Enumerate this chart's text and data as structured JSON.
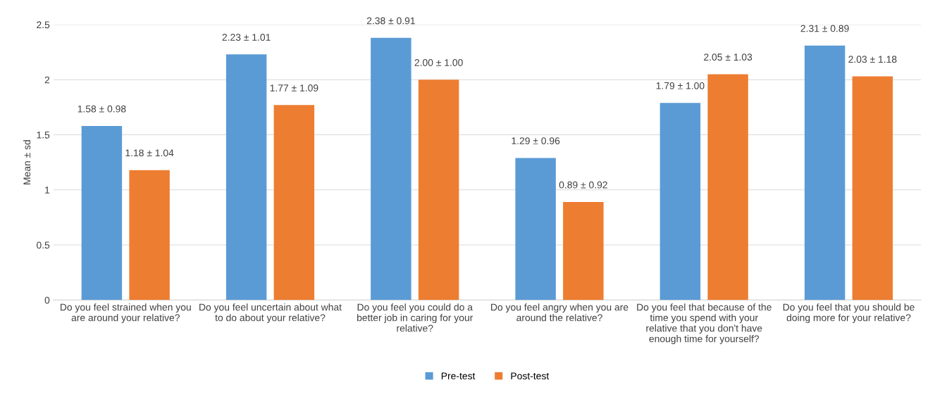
{
  "chart_data": {
    "type": "bar",
    "ylabel": "Mean ± sd",
    "categories": [
      "Do you feel strained when you are around your relative?",
      "Do you feel uncertain about what to do about your relative?",
      "Do you feel you could do a better job in caring for your relative?",
      "Do you feel angry when you are around the relative?",
      "Do you feel that because of the time you spend with your relative that you don't have enough time for yourself?",
      "Do you feel that you should be doing more for your relative?"
    ],
    "series": [
      {
        "name": "Pre-test",
        "color": "#5b9bd5",
        "values": [
          1.58,
          2.23,
          2.38,
          1.29,
          1.79,
          2.31
        ],
        "value_labels": [
          "1.58 ± 0.98",
          "2.23 ± 1.01",
          "2.38 ± 0.91",
          "1.29 ± 0.96",
          "1.79 ± 1.00",
          "2.31 ± 0.89"
        ]
      },
      {
        "name": "Post-test",
        "color": "#ed7d31",
        "values": [
          1.18,
          1.77,
          2.0,
          0.89,
          2.05,
          2.03
        ],
        "value_labels": [
          "1.18 ± 1.04",
          "1.77 ± 1.09",
          "2.00 ± 1.00",
          "0.89 ± 0.92",
          "2.05 ± 1.03",
          "2.03 ± 1.18"
        ]
      }
    ],
    "ylim": [
      0,
      2.5
    ],
    "yticks": [
      0,
      0.5,
      1,
      1.5,
      2,
      2.5
    ],
    "grid": "y",
    "legend": "bottom"
  }
}
